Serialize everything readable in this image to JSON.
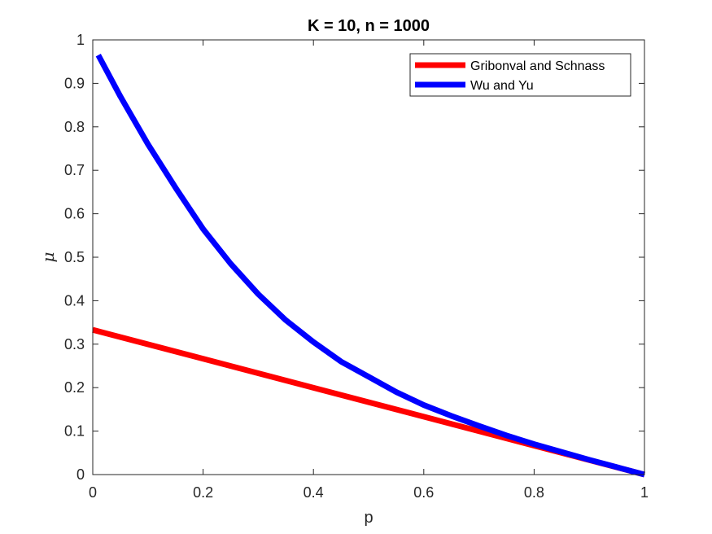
{
  "chart_data": {
    "type": "line",
    "title": "K = 10, n = 1000",
    "xlabel": "p",
    "ylabel": "μ",
    "xlim": [
      0,
      1
    ],
    "ylim": [
      0,
      1
    ],
    "xticks": [
      "0",
      "0.2",
      "0.4",
      "0.6",
      "0.8",
      "1"
    ],
    "yticks": [
      "0",
      "0.1",
      "0.2",
      "0.3",
      "0.4",
      "0.5",
      "0.6",
      "0.7",
      "0.8",
      "0.9",
      "1"
    ],
    "grid": false,
    "legend_position": "top-right",
    "series": [
      {
        "name": "Gribonval and Schnass",
        "color": "#ff0000",
        "x": [
          0.0,
          1.0
        ],
        "y": [
          0.333,
          0.0
        ]
      },
      {
        "name": "Wu and Yu",
        "color": "#0000ff",
        "x": [
          0.01,
          0.05,
          0.1,
          0.15,
          0.2,
          0.25,
          0.3,
          0.35,
          0.4,
          0.45,
          0.5,
          0.55,
          0.6,
          0.65,
          0.7,
          0.75,
          0.8,
          0.85,
          0.9,
          0.95,
          1.0
        ],
        "y": [
          0.965,
          0.87,
          0.76,
          0.66,
          0.565,
          0.485,
          0.415,
          0.355,
          0.305,
          0.26,
          0.225,
          0.19,
          0.16,
          0.135,
          0.112,
          0.09,
          0.07,
          0.052,
          0.034,
          0.017,
          0.0
        ]
      }
    ]
  }
}
